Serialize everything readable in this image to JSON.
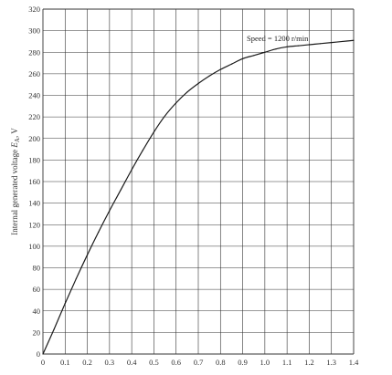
{
  "chart_data": {
    "type": "line",
    "title": "",
    "xlabel": "",
    "ylabel": "Internal generated voltage E_A, V",
    "ylabel_parts": {
      "main": "Internal generated voltage ",
      "var": "E",
      "sub": "A",
      "unit": ", V"
    },
    "xlim": [
      0,
      1.4
    ],
    "ylim": [
      0,
      320
    ],
    "grid": true,
    "x_ticks": [
      "0",
      "0.1",
      "0.2",
      "0.3",
      "0.4",
      "0.5",
      "0.6",
      "0.7",
      "0.8",
      "0.9",
      "1.0",
      "1.1",
      "1.2",
      "1.3",
      "1.4"
    ],
    "y_ticks": [
      "0",
      "20",
      "40",
      "60",
      "80",
      "100",
      "120",
      "140",
      "160",
      "180",
      "200",
      "220",
      "240",
      "260",
      "280",
      "300",
      "320"
    ],
    "annotation": "Speed = 1200 r/min",
    "series": [
      {
        "x": [
          0,
          0.05,
          0.1,
          0.15,
          0.2,
          0.25,
          0.3,
          0.35,
          0.4,
          0.45,
          0.5,
          0.55,
          0.6,
          0.65,
          0.7,
          0.75,
          0.8,
          0.85,
          0.9,
          0.95,
          1.0,
          1.05,
          1.1,
          1.15,
          1.2,
          1.25,
          1.3,
          1.35,
          1.4
        ],
        "values": [
          0,
          23,
          47,
          70,
          92,
          113,
          133,
          152,
          171,
          189,
          206,
          221,
          233,
          243,
          251,
          258,
          264,
          269,
          274,
          277,
          280,
          283,
          285,
          286,
          287,
          288,
          289,
          290,
          291
        ]
      }
    ],
    "colors": {
      "line": "#1a1a1a",
      "grid": "#333333",
      "text": "#333333"
    }
  }
}
